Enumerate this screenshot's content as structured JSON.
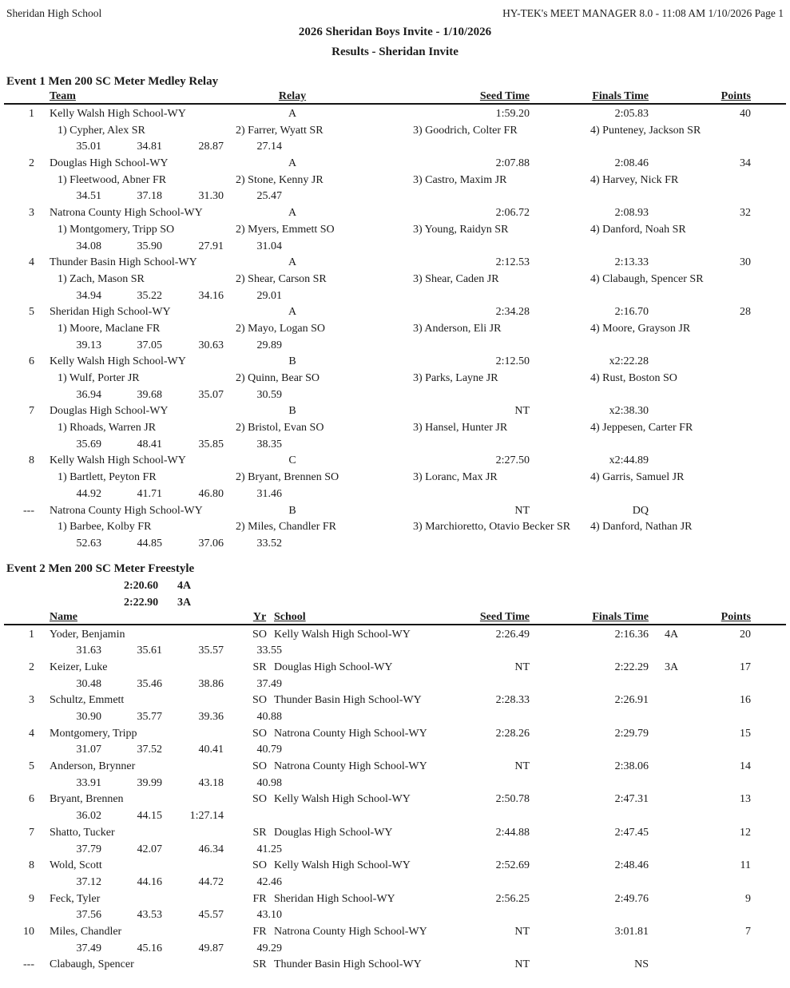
{
  "page": {
    "school": "Sheridan High School",
    "generator": "HY-TEK's MEET MANAGER 8.0 - 11:08 AM  1/10/2026  Page 1",
    "title": "2026 Sheridan Boys Invite - 1/10/2026",
    "subtitle": "Results - Sheridan Invite"
  },
  "event1": {
    "title": "Event 1  Men 200 SC Meter Medley Relay",
    "headers": {
      "team": "Team",
      "relay": "Relay",
      "seed": "Seed Time",
      "finals": "Finals Time",
      "points": "Points"
    },
    "rows": [
      {
        "rank": "1",
        "team": "Kelly Walsh High School-WY",
        "relay": "A",
        "seed": "1:59.20",
        "finals": "2:05.83",
        "points": "40",
        "swimmers": [
          "1) Cypher, Alex SR",
          "2) Farrer, Wyatt SR",
          "3) Goodrich, Colter FR",
          "4) Punteney, Jackson SR"
        ],
        "splits": [
          "35.01",
          "34.81",
          "28.87",
          "27.14"
        ]
      },
      {
        "rank": "2",
        "team": "Douglas High School-WY",
        "relay": "A",
        "seed": "2:07.88",
        "finals": "2:08.46",
        "points": "34",
        "swimmers": [
          "1) Fleetwood, Abner FR",
          "2) Stone, Kenny JR",
          "3) Castro, Maxim JR",
          "4) Harvey, Nick FR"
        ],
        "splits": [
          "34.51",
          "37.18",
          "31.30",
          "25.47"
        ]
      },
      {
        "rank": "3",
        "team": "Natrona County High School-WY",
        "relay": "A",
        "seed": "2:06.72",
        "finals": "2:08.93",
        "points": "32",
        "swimmers": [
          "1) Montgomery, Tripp SO",
          "2) Myers, Emmett SO",
          "3) Young, Raidyn SR",
          "4) Danford, Noah SR"
        ],
        "splits": [
          "34.08",
          "35.90",
          "27.91",
          "31.04"
        ]
      },
      {
        "rank": "4",
        "team": "Thunder Basin High School-WY",
        "relay": "A",
        "seed": "2:12.53",
        "finals": "2:13.33",
        "points": "30",
        "swimmers": [
          "1) Zach, Mason SR",
          "2) Shear, Carson SR",
          "3) Shear, Caden JR",
          "4) Clabaugh, Spencer SR"
        ],
        "splits": [
          "34.94",
          "35.22",
          "34.16",
          "29.01"
        ]
      },
      {
        "rank": "5",
        "team": "Sheridan High School-WY",
        "relay": "A",
        "seed": "2:34.28",
        "finals": "2:16.70",
        "points": "28",
        "swimmers": [
          "1) Moore, Maclane FR",
          "2) Mayo, Logan SO",
          "3) Anderson, Eli JR",
          "4) Moore, Grayson JR"
        ],
        "splits": [
          "39.13",
          "37.05",
          "30.63",
          "29.89"
        ]
      },
      {
        "rank": "6",
        "team": "Kelly Walsh High School-WY",
        "relay": "B",
        "seed": "2:12.50",
        "finals": "x2:22.28",
        "points": "",
        "swimmers": [
          "1) Wulf, Porter JR",
          "2) Quinn, Bear SO",
          "3) Parks, Layne JR",
          "4) Rust, Boston SO"
        ],
        "splits": [
          "36.94",
          "39.68",
          "35.07",
          "30.59"
        ]
      },
      {
        "rank": "7",
        "team": "Douglas High School-WY",
        "relay": "B",
        "seed": "NT",
        "finals": "x2:38.30",
        "points": "",
        "swimmers": [
          "1) Rhoads, Warren JR",
          "2) Bristol, Evan SO",
          "3) Hansel, Hunter JR",
          "4) Jeppesen, Carter FR"
        ],
        "splits": [
          "35.69",
          "48.41",
          "35.85",
          "38.35"
        ]
      },
      {
        "rank": "8",
        "team": "Kelly Walsh High School-WY",
        "relay": "C",
        "seed": "2:27.50",
        "finals": "x2:44.89",
        "points": "",
        "swimmers": [
          "1) Bartlett, Peyton FR",
          "2) Bryant, Brennen SO",
          "3) Loranc, Max JR",
          "4) Garris, Samuel JR"
        ],
        "splits": [
          "44.92",
          "41.71",
          "46.80",
          "31.46"
        ]
      },
      {
        "rank": "---",
        "team": "Natrona County High School-WY",
        "relay": "B",
        "seed": "NT",
        "finals": "DQ",
        "points": "",
        "swimmers": [
          "1) Barbee, Kolby FR",
          "2) Miles, Chandler FR",
          "3) Marchioretto, Otavio Becker SR",
          "4) Danford, Nathan JR"
        ],
        "splits": [
          "52.63",
          "44.85",
          "37.06",
          "33.52"
        ]
      }
    ]
  },
  "event2": {
    "title": "Event 2  Men 200 SC Meter Freestyle",
    "standards": [
      {
        "time": "2:20.60",
        "label": "4A"
      },
      {
        "time": "2:22.90",
        "label": "3A"
      }
    ],
    "headers": {
      "name": "Name",
      "yr": "Yr",
      "school": "School",
      "seed": "Seed Time",
      "finals": "Finals Time",
      "points": "Points"
    },
    "rows": [
      {
        "rank": "1",
        "name": "Yoder, Benjamin",
        "yr": "SO",
        "school": "Kelly Walsh High School-WY",
        "seed": "2:26.49",
        "finals": "2:16.36",
        "qual": "4A",
        "points": "20",
        "splits": [
          "31.63",
          "35.61",
          "35.57",
          "33.55"
        ]
      },
      {
        "rank": "2",
        "name": "Keizer, Luke",
        "yr": "SR",
        "school": "Douglas High School-WY",
        "seed": "NT",
        "finals": "2:22.29",
        "qual": "3A",
        "points": "17",
        "splits": [
          "30.48",
          "35.46",
          "38.86",
          "37.49"
        ]
      },
      {
        "rank": "3",
        "name": "Schultz, Emmett",
        "yr": "SO",
        "school": "Thunder Basin High School-WY",
        "seed": "2:28.33",
        "finals": "2:26.91",
        "qual": "",
        "points": "16",
        "splits": [
          "30.90",
          "35.77",
          "39.36",
          "40.88"
        ]
      },
      {
        "rank": "4",
        "name": "Montgomery, Tripp",
        "yr": "SO",
        "school": "Natrona County High School-WY",
        "seed": "2:28.26",
        "finals": "2:29.79",
        "qual": "",
        "points": "15",
        "splits": [
          "31.07",
          "37.52",
          "40.41",
          "40.79"
        ]
      },
      {
        "rank": "5",
        "name": "Anderson, Brynner",
        "yr": "SO",
        "school": "Natrona County High School-WY",
        "seed": "NT",
        "finals": "2:38.06",
        "qual": "",
        "points": "14",
        "splits": [
          "33.91",
          "39.99",
          "43.18",
          "40.98"
        ]
      },
      {
        "rank": "6",
        "name": "Bryant, Brennen",
        "yr": "SO",
        "school": "Kelly Walsh High School-WY",
        "seed": "2:50.78",
        "finals": "2:47.31",
        "qual": "",
        "points": "13",
        "splits": [
          "36.02",
          "44.15",
          "1:27.14"
        ]
      },
      {
        "rank": "7",
        "name": "Shatto, Tucker",
        "yr": "SR",
        "school": "Douglas High School-WY",
        "seed": "2:44.88",
        "finals": "2:47.45",
        "qual": "",
        "points": "12",
        "splits": [
          "37.79",
          "42.07",
          "46.34",
          "41.25"
        ]
      },
      {
        "rank": "8",
        "name": "Wold, Scott",
        "yr": "SO",
        "school": "Kelly Walsh High School-WY",
        "seed": "2:52.69",
        "finals": "2:48.46",
        "qual": "",
        "points": "11",
        "splits": [
          "37.12",
          "44.16",
          "44.72",
          "42.46"
        ]
      },
      {
        "rank": "9",
        "name": "Feck, Tyler",
        "yr": "FR",
        "school": "Sheridan High School-WY",
        "seed": "2:56.25",
        "finals": "2:49.76",
        "qual": "",
        "points": "9",
        "splits": [
          "37.56",
          "43.53",
          "45.57",
          "43.10"
        ]
      },
      {
        "rank": "10",
        "name": "Miles, Chandler",
        "yr": "FR",
        "school": "Natrona County High School-WY",
        "seed": "NT",
        "finals": "3:01.81",
        "qual": "",
        "points": "7",
        "splits": [
          "37.49",
          "45.16",
          "49.87",
          "49.29"
        ]
      },
      {
        "rank": "---",
        "name": "Clabaugh, Spencer",
        "yr": "SR",
        "school": "Thunder Basin High School-WY",
        "seed": "NT",
        "finals": "NS",
        "qual": "",
        "points": "",
        "splits": []
      }
    ]
  }
}
